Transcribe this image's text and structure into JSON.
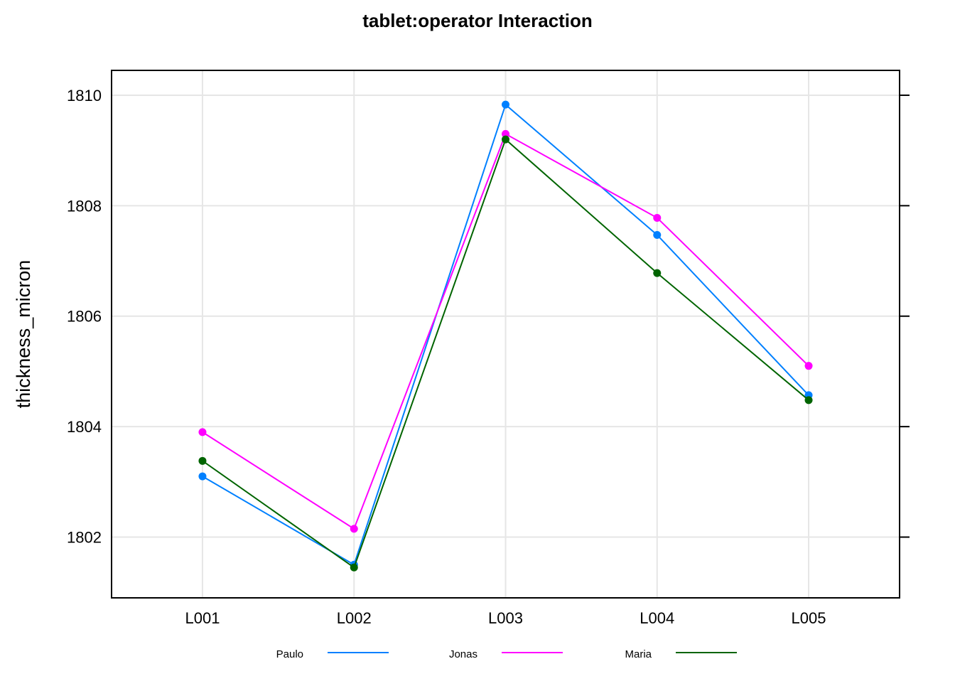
{
  "chart_data": {
    "type": "line",
    "title": "tablet:operator Interaction",
    "xlabel": "",
    "ylabel": "thickness_micron",
    "categories": [
      "L001",
      "L002",
      "L003",
      "L004",
      "L005"
    ],
    "xlim": [
      0.4,
      5.6
    ],
    "ylim": [
      1800.9,
      1810.45
    ],
    "yticks": [
      1802,
      1804,
      1806,
      1808,
      1810
    ],
    "ytick_labels": [
      "1802",
      "1804",
      "1806",
      "1808",
      "1810"
    ],
    "grid": true,
    "legend_position": "bottom",
    "series": [
      {
        "name": "Paulo",
        "color": "#0080ff",
        "values": [
          1803.1,
          1801.5,
          1809.83,
          1807.47,
          1804.57
        ]
      },
      {
        "name": "Jonas",
        "color": "#ff00ff",
        "values": [
          1803.9,
          1802.15,
          1809.3,
          1807.78,
          1805.1
        ]
      },
      {
        "name": "Maria",
        "color": "#006400",
        "values": [
          1803.38,
          1801.45,
          1809.2,
          1806.78,
          1804.48
        ]
      }
    ]
  }
}
